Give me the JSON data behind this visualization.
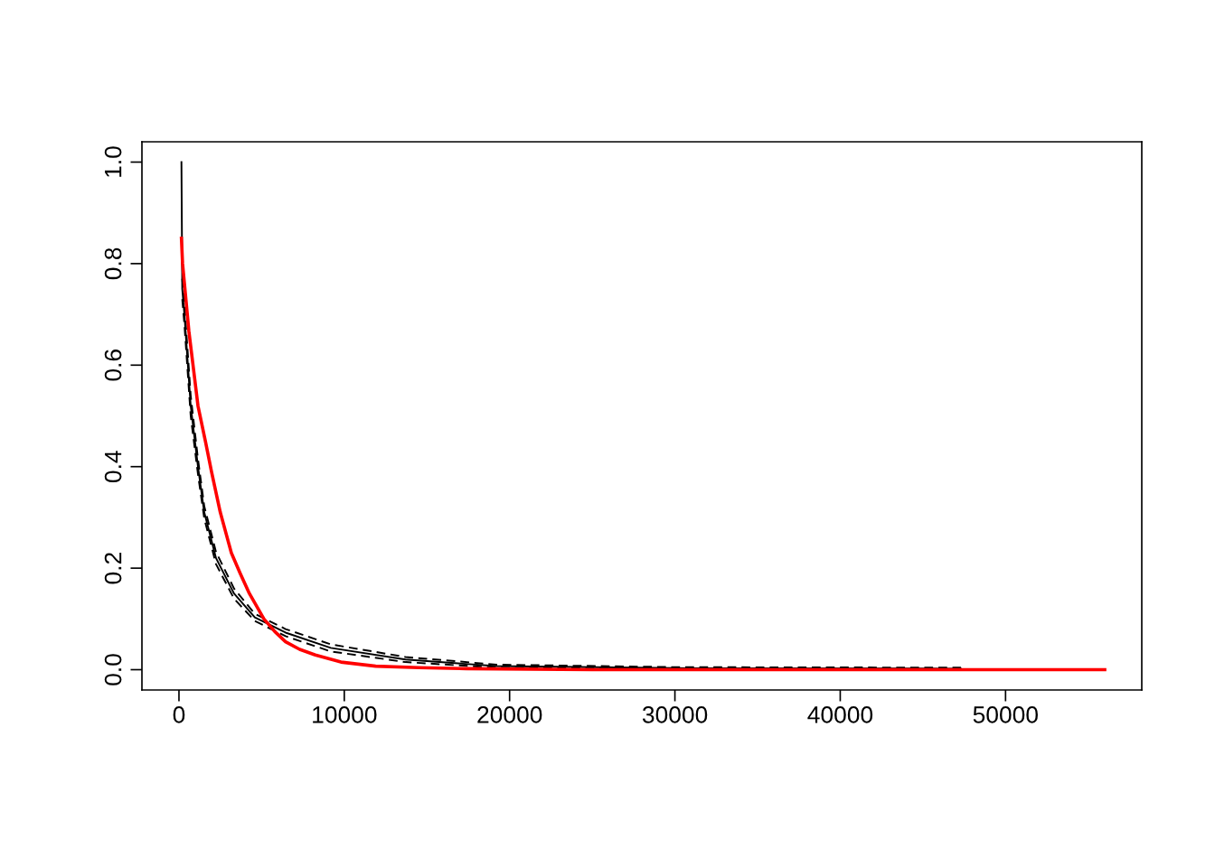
{
  "chart_data": {
    "type": "line",
    "xlim": [
      -2240,
      58240
    ],
    "ylim": [
      -0.04,
      1.04
    ],
    "xticks": [
      0,
      10000,
      20000,
      30000,
      40000,
      50000
    ],
    "yticks": [
      {
        "value": 0,
        "label": "0.0"
      },
      {
        "value": 0.2,
        "label": "0.2"
      },
      {
        "value": 0.4,
        "label": "0.4"
      },
      {
        "value": 0.6,
        "label": "0.6"
      },
      {
        "value": 0.8,
        "label": "0.8"
      },
      {
        "value": 1,
        "label": "1.0"
      }
    ],
    "grid": false,
    "legend": false,
    "series": [
      {
        "line_style": "solid",
        "color": "#000000",
        "x": [
          150,
          200,
          330,
          710,
          1150,
          1530,
          2240,
          3330,
          4590,
          6450,
          9180,
          13700,
          19200,
          30000,
          47300
        ],
        "values": [
          1.0,
          0.75,
          0.7,
          0.52,
          0.4,
          0.31,
          0.22,
          0.15,
          0.103,
          0.073,
          0.043,
          0.02,
          0.007,
          0.003,
          0.002
        ]
      },
      {
        "line_style": "dashed",
        "color": "#000000",
        "x": [
          200,
          330,
          710,
          1150,
          1530,
          2240,
          3330,
          4590,
          6450,
          9180,
          13700,
          19200,
          30000,
          47300
        ],
        "values": [
          0.77,
          0.72,
          0.54,
          0.415,
          0.322,
          0.232,
          0.16,
          0.11,
          0.08,
          0.05,
          0.025,
          0.01,
          0.005,
          0.004
        ]
      },
      {
        "line_style": "dashed",
        "color": "#000000",
        "x": [
          200,
          330,
          710,
          1150,
          1530,
          2240,
          3330,
          4590,
          6450,
          9180,
          13700,
          19200,
          30000,
          47300
        ],
        "values": [
          0.73,
          0.68,
          0.5,
          0.385,
          0.298,
          0.208,
          0.14,
          0.096,
          0.066,
          0.036,
          0.015,
          0.004,
          0.001,
          0.0
        ]
      },
      {
        "line_style": "solid",
        "color": "#ff0000",
        "x": [
          150,
          218,
          600,
          1150,
          1600,
          1970,
          2500,
          3170,
          3700,
          4260,
          5140,
          5800,
          6450,
          7300,
          8250,
          9800,
          11900,
          14500,
          17400,
          25000,
          56000
        ],
        "values": [
          0.85,
          0.8,
          0.667,
          0.52,
          0.45,
          0.39,
          0.31,
          0.23,
          0.19,
          0.15,
          0.1,
          0.075,
          0.055,
          0.04,
          0.029,
          0.015,
          0.007,
          0.004,
          0.002,
          0.0,
          0.0
        ]
      }
    ]
  }
}
